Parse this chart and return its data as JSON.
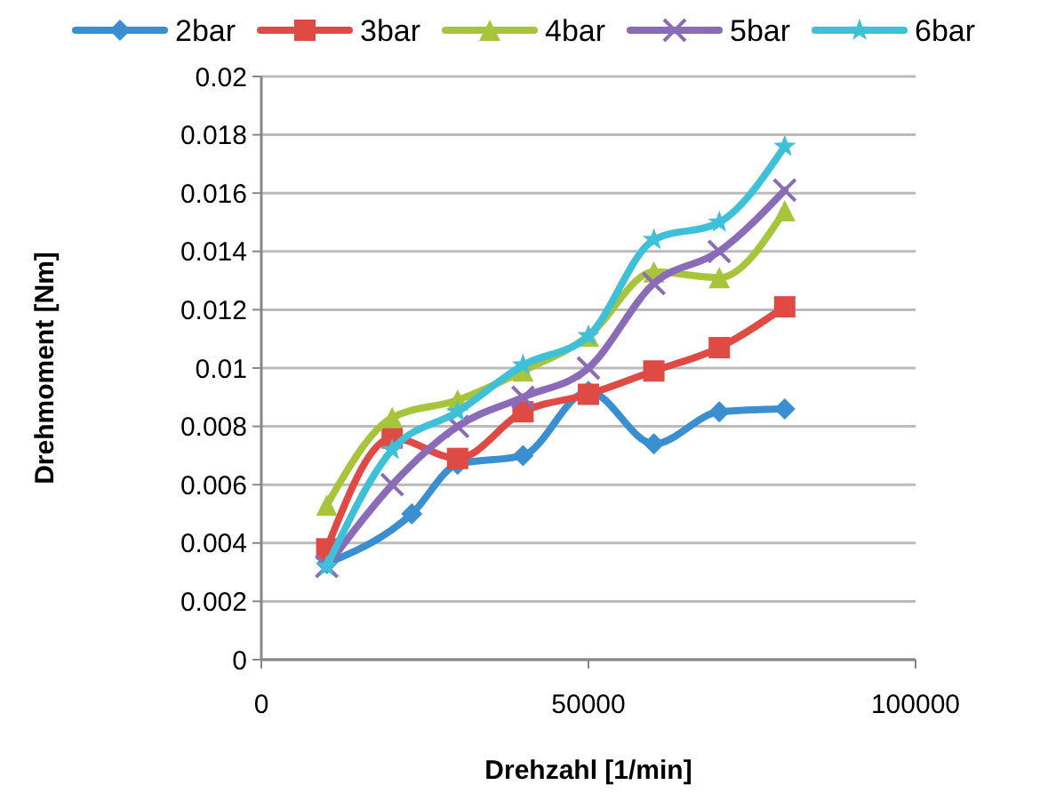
{
  "chart_data": {
    "type": "line",
    "xlabel": "Drehzahl [1/min]",
    "ylabel": "Drehmoment [Nm]",
    "xlim": [
      0,
      100000
    ],
    "xticks": [
      0,
      50000,
      100000
    ],
    "ylim": [
      0,
      0.02
    ],
    "yticks": [
      0,
      0.002,
      0.004,
      0.006,
      0.008,
      0.01,
      0.012,
      0.014,
      0.016,
      0.018,
      0.02
    ],
    "grid": "y",
    "legend": "top",
    "line_style": "solid",
    "x": [
      10000,
      20000,
      30000,
      40000,
      50000,
      60000,
      70000,
      80000
    ],
    "series": [
      {
        "name": "2bar",
        "color": "#3a8fd0",
        "marker": "diamond",
        "x": [
          10000,
          23000,
          30000,
          40000,
          50000,
          60000,
          70000,
          80000
        ],
        "values": [
          0.0033,
          0.005,
          0.0067,
          0.007,
          0.0092,
          0.0074,
          0.0085,
          0.0086
        ]
      },
      {
        "name": "3bar",
        "color": "#e04a45",
        "marker": "square",
        "values": [
          0.0038,
          0.0076,
          0.0069,
          0.0085,
          0.0091,
          0.0099,
          0.0107,
          0.0121
        ]
      },
      {
        "name": "4bar",
        "color": "#a8c43a",
        "marker": "triangle",
        "values": [
          0.0053,
          0.0083,
          0.0089,
          0.0099,
          0.0111,
          0.0133,
          0.0131,
          0.0154
        ]
      },
      {
        "name": "5bar",
        "color": "#8a6bb8",
        "marker": "cross",
        "values": [
          0.0032,
          0.006,
          0.008,
          0.009,
          0.01,
          0.0129,
          0.014,
          0.0161
        ]
      },
      {
        "name": "6bar",
        "color": "#3ec0d8",
        "marker": "star",
        "values": [
          0.0032,
          0.0072,
          0.0085,
          0.0101,
          0.0111,
          0.0144,
          0.015,
          0.0176
        ]
      }
    ]
  }
}
